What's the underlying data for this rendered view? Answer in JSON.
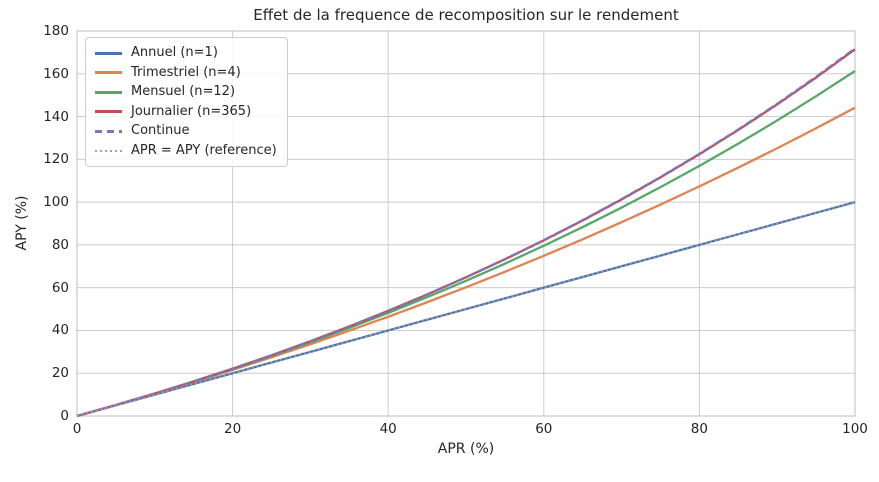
{
  "chart_data": {
    "type": "line",
    "title": "Effet de la frequence de recomposition sur le rendement",
    "xlabel": "APR (%)",
    "ylabel": "APY (%)",
    "xlim": [
      0,
      100
    ],
    "ylim": [
      0,
      180
    ],
    "x_ticks": [
      0,
      20,
      40,
      60,
      80,
      100
    ],
    "y_ticks": [
      0,
      20,
      40,
      60,
      80,
      100,
      120,
      140,
      160,
      180
    ],
    "grid": true,
    "grid_color": "#cccccc",
    "legend_position": "upper left",
    "x": [
      0,
      5,
      10,
      15,
      20,
      25,
      30,
      35,
      40,
      45,
      50,
      55,
      60,
      65,
      70,
      75,
      80,
      85,
      90,
      95,
      100
    ],
    "series": [
      {
        "name": "Annuel (n=1)",
        "color": "#4C72B0",
        "style": "solid",
        "values": [
          0,
          5,
          10,
          15,
          20,
          25,
          30,
          35,
          40,
          45,
          50,
          55,
          60,
          65,
          70,
          75,
          80,
          85,
          90,
          95,
          100
        ]
      },
      {
        "name": "Trimestriel (n=4)",
        "color": "#DD8452",
        "style": "solid",
        "values": [
          0,
          5.09,
          10.38,
          15.87,
          21.55,
          27.44,
          33.55,
          39.87,
          46.41,
          53.18,
          60.18,
          67.42,
          74.9,
          82.63,
          90.61,
          98.85,
          107.36,
          116.14,
          125.19,
          134.52,
          144.14
        ]
      },
      {
        "name": "Mensuel (n=12)",
        "color": "#55A868",
        "style": "solid",
        "values": [
          0,
          5.12,
          10.47,
          16.08,
          21.94,
          28.07,
          34.49,
          41.2,
          48.21,
          55.55,
          63.21,
          71.22,
          79.59,
          88.33,
          97.46,
          106.99,
          116.94,
          127.33,
          138.18,
          149.52,
          161.3
        ]
      },
      {
        "name": "Journalier (n=365)",
        "color": "#C44E52",
        "style": "solid",
        "values": [
          0,
          5.13,
          10.52,
          16.18,
          22.13,
          28.39,
          34.97,
          41.88,
          49.15,
          56.79,
          64.82,
          73.25,
          82.12,
          91.44,
          101.24,
          111.54,
          122.36,
          133.73,
          145.69,
          158.25,
          171.46
        ]
      },
      {
        "name": "Continue",
        "color": "#8172B3",
        "style": "dashed",
        "values": [
          0,
          5.13,
          10.52,
          16.18,
          22.14,
          28.4,
          34.99,
          41.91,
          49.18,
          56.83,
          64.87,
          73.33,
          82.21,
          91.55,
          101.38,
          111.7,
          122.55,
          133.96,
          145.96,
          158.57,
          171.83
        ]
      },
      {
        "name": "APR = APY (reference)",
        "color": "#a3a3a3",
        "style": "dotted",
        "values": [
          0,
          5,
          10,
          15,
          20,
          25,
          30,
          35,
          40,
          45,
          50,
          55,
          60,
          65,
          70,
          75,
          80,
          85,
          90,
          95,
          100
        ]
      }
    ]
  }
}
